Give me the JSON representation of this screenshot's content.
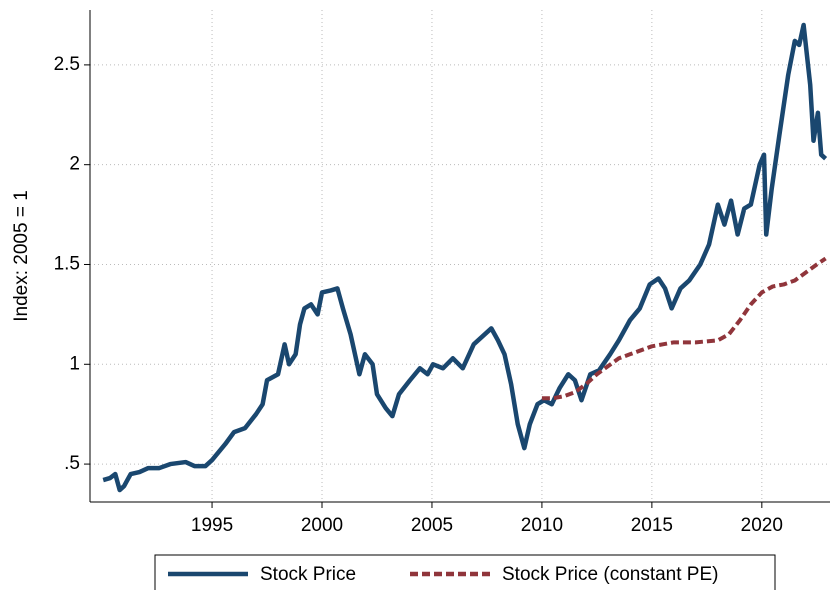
{
  "chart_data": {
    "type": "line",
    "ylabel": "Index: 2005 = 1",
    "xlim": [
      1989.45,
      2023.1
    ],
    "ylim": [
      0.31,
      2.775
    ],
    "xticks": [
      1995,
      2000,
      2005,
      2010,
      2015,
      2020
    ],
    "yticks": [
      {
        "value": 0.5,
        "label": ".5"
      },
      1,
      1.5,
      2,
      2.5
    ],
    "grid": true,
    "legend": "bottom",
    "series": [
      {
        "name": "Stock Price",
        "color": "#1a476f",
        "dash": false,
        "x": [
          1990.05,
          1990.36,
          1990.6,
          1990.8,
          1991.0,
          1991.3,
          1991.7,
          1992.1,
          1992.6,
          1993.1,
          1993.8,
          1994.2,
          1994.7,
          1995.0,
          1995.6,
          1996.0,
          1996.5,
          1997.0,
          1997.3,
          1997.5,
          1998.0,
          1998.3,
          1998.5,
          1998.8,
          1999.0,
          1999.2,
          1999.5,
          1999.8,
          2000.0,
          2000.4,
          2000.7,
          2000.95,
          2001.3,
          2001.5,
          2001.7,
          2001.95,
          2002.3,
          2002.5,
          2002.9,
          2003.2,
          2003.5,
          2004.0,
          2004.45,
          2004.8,
          2005.05,
          2005.5,
          2005.95,
          2006.4,
          2006.9,
          2007.4,
          2007.7,
          2008.0,
          2008.3,
          2008.6,
          2008.9,
          2009.2,
          2009.45,
          2009.8,
          2010.1,
          2010.45,
          2010.8,
          2011.2,
          2011.5,
          2011.8,
          2012.2,
          2012.6,
          2013.1,
          2013.5,
          2014.0,
          2014.45,
          2014.9,
          2015.3,
          2015.6,
          2015.9,
          2016.3,
          2016.7,
          2017.2,
          2017.6,
          2018.0,
          2018.3,
          2018.6,
          2018.9,
          2019.2,
          2019.5,
          2019.9,
          2020.1,
          2020.2,
          2020.45,
          2020.8,
          2021.2,
          2021.5,
          2021.7,
          2021.9,
          2022.2,
          2022.35,
          2022.55,
          2022.7,
          2022.9
        ],
        "values": [
          0.42,
          0.43,
          0.45,
          0.37,
          0.39,
          0.45,
          0.46,
          0.48,
          0.48,
          0.5,
          0.51,
          0.49,
          0.49,
          0.52,
          0.6,
          0.66,
          0.68,
          0.75,
          0.8,
          0.92,
          0.95,
          1.1,
          1.0,
          1.05,
          1.2,
          1.28,
          1.3,
          1.25,
          1.36,
          1.37,
          1.38,
          1.28,
          1.15,
          1.05,
          0.95,
          1.05,
          1.0,
          0.85,
          0.78,
          0.74,
          0.85,
          0.92,
          0.98,
          0.95,
          1.0,
          0.98,
          1.03,
          0.98,
          1.1,
          1.15,
          1.18,
          1.12,
          1.05,
          0.9,
          0.7,
          0.58,
          0.7,
          0.8,
          0.82,
          0.8,
          0.88,
          0.95,
          0.92,
          0.82,
          0.95,
          0.97,
          1.05,
          1.12,
          1.22,
          1.28,
          1.4,
          1.43,
          1.38,
          1.28,
          1.38,
          1.42,
          1.5,
          1.6,
          1.8,
          1.7,
          1.82,
          1.65,
          1.78,
          1.8,
          2.0,
          2.05,
          1.65,
          1.88,
          2.15,
          2.45,
          2.62,
          2.6,
          2.7,
          2.4,
          2.12,
          2.26,
          2.05,
          2.03
        ]
      },
      {
        "name": "Stock Price (constant PE)",
        "color": "#90353b",
        "dash": true,
        "x": [
          2010.0,
          2010.5,
          2011.0,
          2011.5,
          2012.0,
          2012.5,
          2013.0,
          2013.5,
          2014.0,
          2014.5,
          2015.0,
          2015.5,
          2016.0,
          2017.0,
          2018.0,
          2018.5,
          2019.0,
          2019.5,
          2020.0,
          2020.5,
          2021.0,
          2021.5,
          2022.0,
          2022.5,
          2022.9
        ],
        "values": [
          0.83,
          0.83,
          0.84,
          0.86,
          0.9,
          0.95,
          0.99,
          1.03,
          1.05,
          1.07,
          1.09,
          1.1,
          1.11,
          1.11,
          1.12,
          1.15,
          1.22,
          1.3,
          1.36,
          1.39,
          1.4,
          1.42,
          1.46,
          1.5,
          1.53
        ]
      }
    ]
  }
}
